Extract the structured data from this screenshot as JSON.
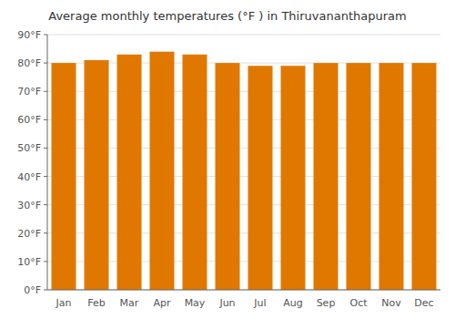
{
  "chart_data": {
    "type": "bar",
    "title": "Average monthly temperatures (°F ) in Thiruvananthapuram",
    "categories": [
      "Jan",
      "Feb",
      "Mar",
      "Apr",
      "May",
      "Jun",
      "Jul",
      "Aug",
      "Sep",
      "Oct",
      "Nov",
      "Dec"
    ],
    "values": [
      80,
      81,
      83,
      84,
      83,
      80,
      79,
      79,
      80,
      80,
      80,
      80
    ],
    "color": "#E07800",
    "ylim": [
      0,
      90
    ],
    "yticks": [
      {
        "value": 0,
        "label": "0°F"
      },
      {
        "value": 10,
        "label": "10°F"
      },
      {
        "value": 20,
        "label": "20°F"
      },
      {
        "value": 30,
        "label": "30°F"
      },
      {
        "value": 40,
        "label": "40°F"
      },
      {
        "value": 50,
        "label": "50°F"
      },
      {
        "value": 60,
        "label": "60°F"
      },
      {
        "value": 70,
        "label": "70°F"
      },
      {
        "value": 80,
        "label": "80°F"
      },
      {
        "value": 90,
        "label": "90°F"
      }
    ],
    "grid": true
  }
}
